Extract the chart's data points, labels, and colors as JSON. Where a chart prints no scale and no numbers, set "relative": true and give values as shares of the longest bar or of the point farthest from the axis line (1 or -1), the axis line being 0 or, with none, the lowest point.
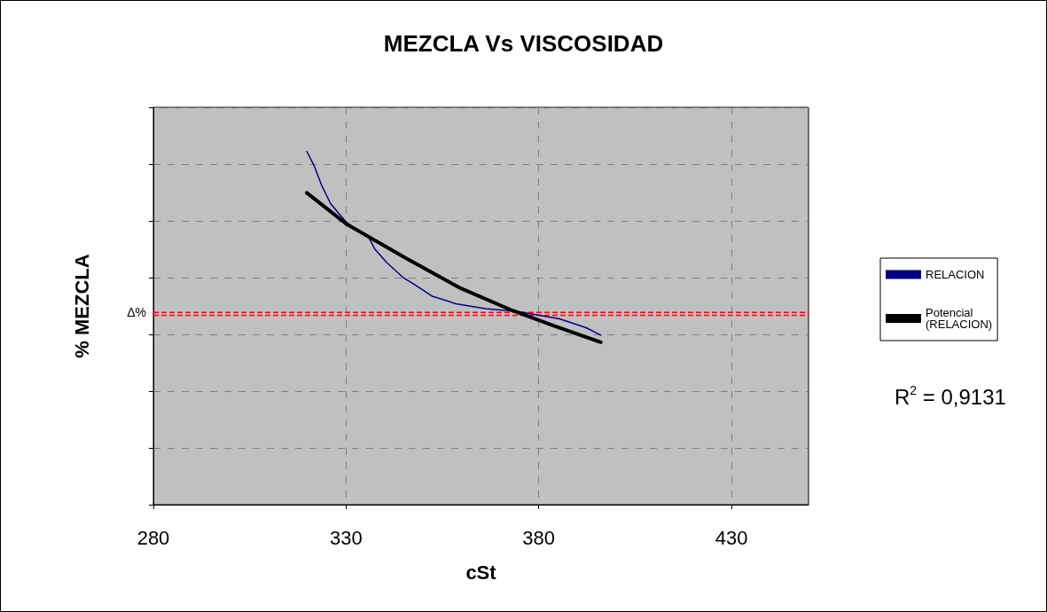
{
  "chart_data": {
    "type": "line",
    "title": "MEZCLA Vs VISCOSIDAD",
    "xlabel": "cSt",
    "ylabel": "% MEZCLA",
    "relative": true,
    "xlim": [
      280,
      450
    ],
    "xticks": [
      280,
      330,
      380,
      430
    ],
    "grid": true,
    "legend": "right",
    "marker": "none",
    "line_style": "solid",
    "series": [
      {
        "name": "RELACION",
        "color": "#000080",
        "x": [
          319.8,
          321.7,
          323.6,
          326,
          330.2,
          335.9,
          337.5,
          340.5,
          344.7,
          347.8,
          352.4,
          358.5,
          366.2,
          374.6,
          380.8,
          385.4,
          392.3,
          396.1
        ],
        "values": [
          1.0,
          0.96,
          0.906,
          0.852,
          0.798,
          0.756,
          0.723,
          0.686,
          0.644,
          0.623,
          0.59,
          0.569,
          0.555,
          0.547,
          0.535,
          0.526,
          0.501,
          0.48
        ]
      },
      {
        "name": "Potencial (RELACION)",
        "color": "#000000",
        "x": [
          319.8,
          330.2,
          345.5,
          359.3,
          373.1,
          383.8,
          396.1
        ],
        "values": [
          0.883,
          0.794,
          0.698,
          0.615,
          0.55,
          0.507,
          0.46
        ]
      }
    ],
    "ref_lines": [
      {
        "axis": "y",
        "value": 0.544,
        "label": "Δ%",
        "color": "#ff0000",
        "line_style": "dashed"
      },
      {
        "axis": "y",
        "value": 0.536,
        "label": null,
        "color": "#ff0000",
        "line_style": "dashed"
      }
    ],
    "annotations": [
      "R$^{2}$ = 0,9131"
    ]
  }
}
